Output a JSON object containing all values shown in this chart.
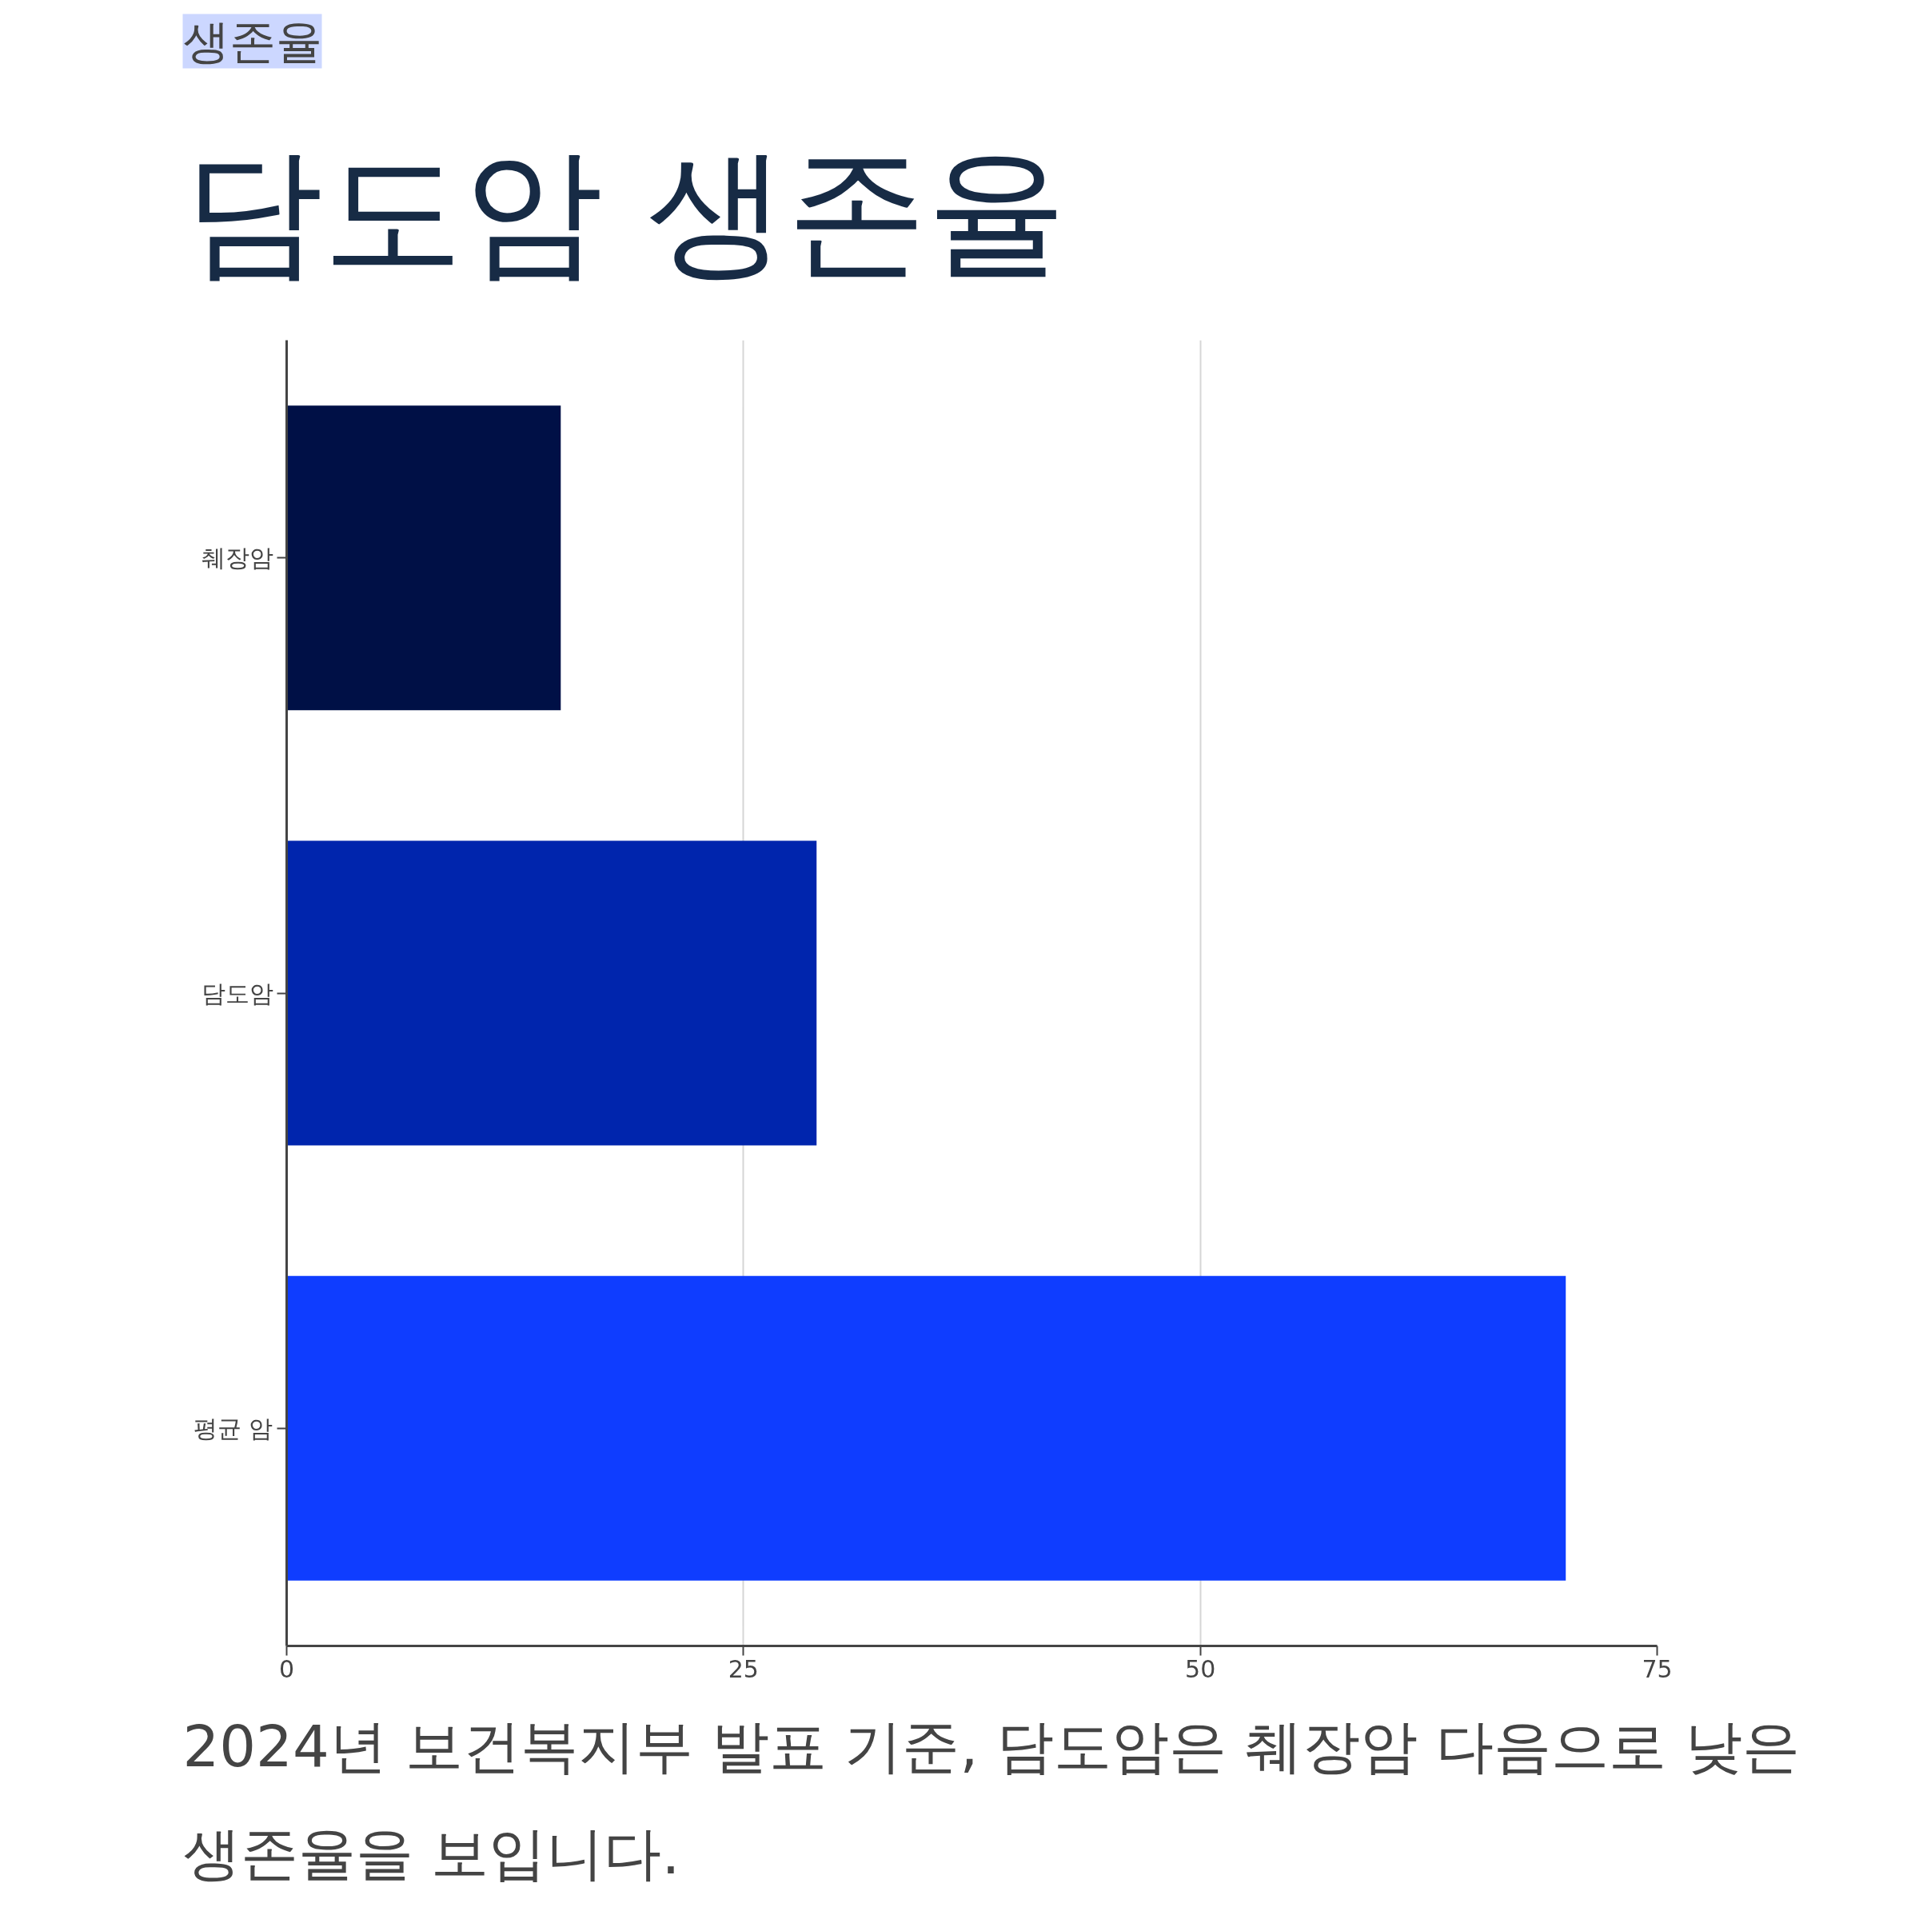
{
  "chart_data": {
    "type": "bar",
    "orientation": "horizontal",
    "subtitle": "생존율",
    "title": "담도암 생존율",
    "categories": [
      "췌장암",
      "담도암",
      "평균 암"
    ],
    "values": [
      15,
      29,
      70
    ],
    "colors": [
      "#001046",
      "#0025ad",
      "#0f3dff"
    ],
    "xlim": [
      0,
      75
    ],
    "xticks": [
      0,
      25,
      50,
      75
    ],
    "grid": "x",
    "annotations": [
      "2024년 보건복지부 발표 기준, 담도암은 췌장암 다음으로 낮은 생존율을 보입니다."
    ]
  }
}
